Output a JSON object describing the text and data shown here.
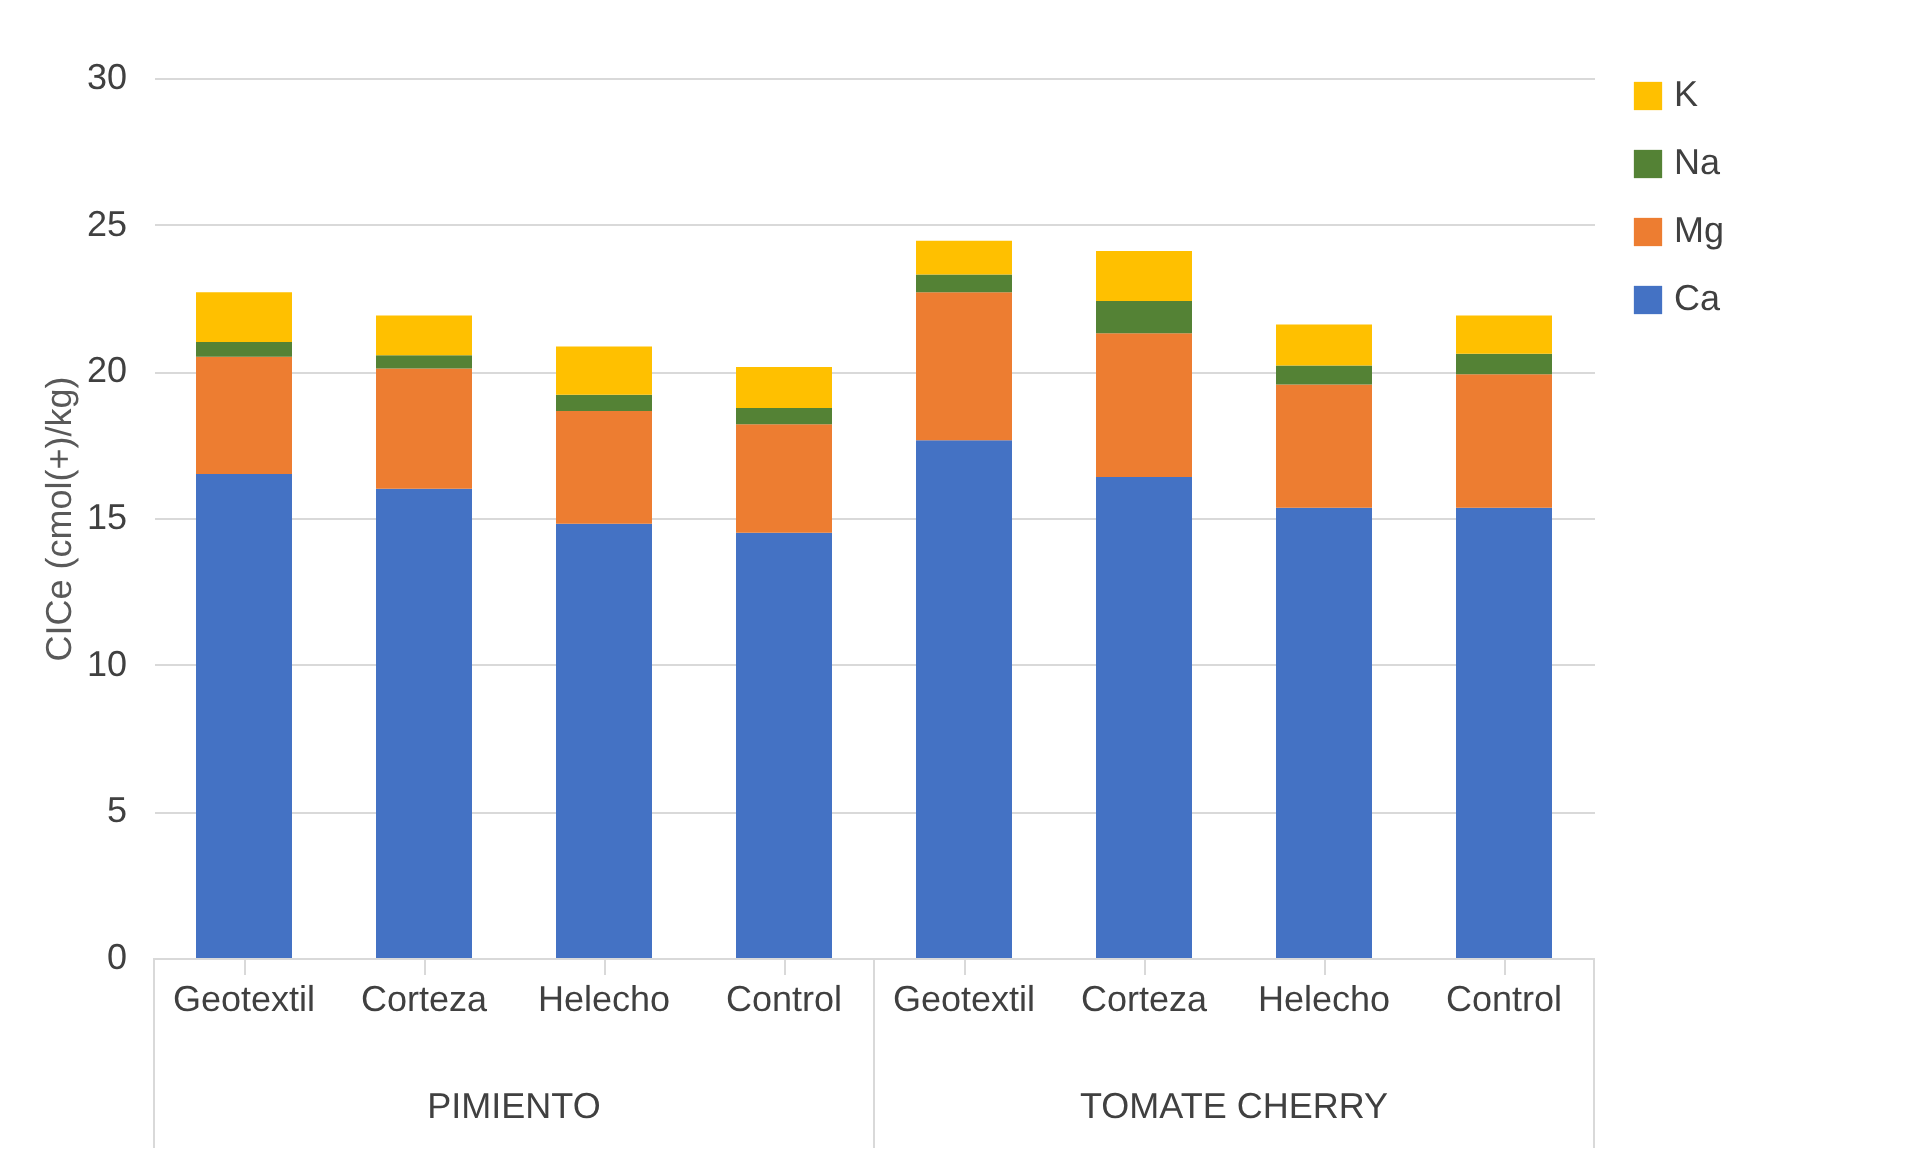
{
  "chart_data": {
    "type": "bar",
    "stacked": true,
    "ylabel": "CICe (cmol(+)/kg)",
    "categories": [
      "Geotextil",
      "Corteza",
      "Helecho",
      "Control",
      "Geotextil",
      "Corteza",
      "Helecho",
      "Control"
    ],
    "series": [
      {
        "name": "Ca",
        "color": "#4472c4",
        "values": [
          16.5,
          16.0,
          14.8,
          14.5,
          17.65,
          16.4,
          15.35,
          15.35
        ]
      },
      {
        "name": "Mg",
        "color": "#ed7d31",
        "values": [
          4.0,
          4.1,
          3.85,
          3.7,
          5.05,
          4.9,
          4.2,
          4.55
        ]
      },
      {
        "name": "Na",
        "color": "#548235",
        "values": [
          0.5,
          0.45,
          0.55,
          0.55,
          0.6,
          1.1,
          0.65,
          0.7
        ]
      },
      {
        "name": "K",
        "color": "#ffc000",
        "values": [
          1.7,
          1.35,
          1.65,
          1.4,
          1.15,
          1.7,
          1.4,
          1.3
        ]
      }
    ],
    "ylim": [
      0,
      30
    ],
    "yticks": [
      0,
      5,
      10,
      15,
      20,
      25,
      30
    ],
    "grid": "y",
    "legend": "right",
    "annotations": [
      "PIMIENTO",
      "TOMATE CHERRY"
    ]
  }
}
